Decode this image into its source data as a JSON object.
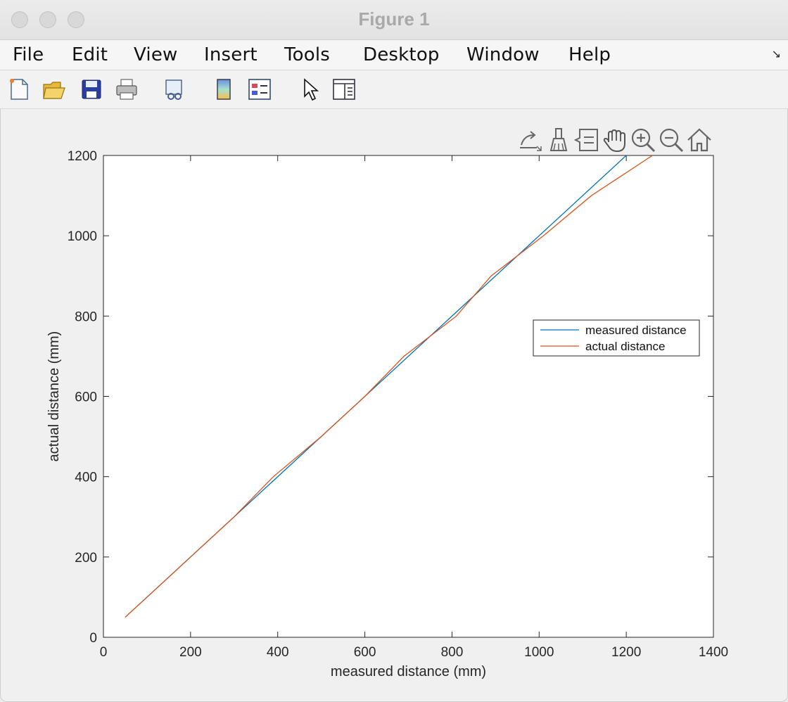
{
  "window": {
    "title": "Figure 1"
  },
  "menubar": {
    "items": [
      "File",
      "Edit",
      "View",
      "Insert",
      "Tools",
      "Desktop",
      "Window",
      "Help"
    ]
  },
  "toolbar": {
    "icons": [
      "new-figure-icon",
      "open-file-icon",
      "save-icon",
      "print-icon",
      "link-plot-icon",
      "colorbar-icon",
      "legend-icon",
      "edit-plot-pointer-icon",
      "property-inspector-icon"
    ]
  },
  "axes_toolbar": {
    "icons": [
      "export-icon",
      "brush-icon",
      "data-tips-icon",
      "pan-hand-icon",
      "zoom-in-icon",
      "zoom-out-icon",
      "home-icon"
    ]
  },
  "colors": {
    "series1": "#0072BD",
    "series2": "#D95319"
  },
  "chart_data": {
    "type": "line",
    "title": "",
    "xlabel": "measured distance (mm)",
    "ylabel": "actual distance (mm)",
    "xlim": [
      0,
      1400
    ],
    "ylim": [
      0,
      1200
    ],
    "xticks": [
      "0",
      "200",
      "400",
      "600",
      "800",
      "1000",
      "1200",
      "1400"
    ],
    "yticks": [
      "0",
      "200",
      "400",
      "600",
      "800",
      "1000",
      "1200"
    ],
    "grid": false,
    "legend_position": "right",
    "series": [
      {
        "name": "measured distance",
        "color": "#0072BD",
        "x": [
          50,
          1250
        ],
        "y": [
          50,
          1250
        ]
      },
      {
        "name": "actual distance",
        "color": "#D95319",
        "x": [
          50,
          100,
          200,
          300,
          390,
          500,
          600,
          690,
          810,
          890,
          1010,
          1120,
          1260
        ],
        "y": [
          50,
          100,
          200,
          300,
          400,
          500,
          600,
          700,
          800,
          900,
          1000,
          1100,
          1200
        ]
      }
    ]
  }
}
